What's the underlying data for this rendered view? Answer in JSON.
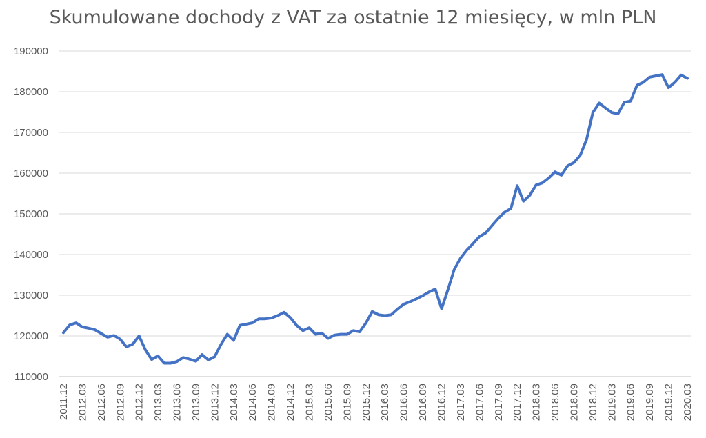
{
  "chart_data": {
    "type": "line",
    "title": "Skumulowane dochody z VAT za ostatnie 12 miesięcy, w mln PLN",
    "xlabel": "",
    "ylabel": "",
    "ylim": [
      110000,
      190000
    ],
    "yticks": [
      "190000",
      "180000",
      "170000",
      "160000",
      "150000",
      "140000",
      "130000",
      "120000",
      "110000"
    ],
    "grid": true,
    "legend": "none",
    "line_color": "#4472c4",
    "x_tick_labels": [
      "2011.12",
      "2012.03",
      "2012.06",
      "2012.09",
      "2012.12",
      "2013.03",
      "2013.06",
      "2013.09",
      "2013.12",
      "2014.03",
      "2014.06",
      "2014.09",
      "2014.12",
      "2015.03",
      "2015.06",
      "2015.09",
      "2015.12",
      "2016.03",
      "2016.06",
      "2016.09",
      "2016.12",
      "2017.03",
      "2017.06",
      "2017.09",
      "2017.12",
      "2018.03",
      "2018.06",
      "2018.09",
      "2018.12",
      "2019.03",
      "2019.06",
      "2019.09",
      "2019.12",
      "2020.03"
    ],
    "series": [
      {
        "name": "",
        "values": [
          120800,
          122700,
          123200,
          122200,
          121900,
          121500,
          120600,
          119700,
          120100,
          119200,
          117300,
          118000,
          120000,
          116600,
          114200,
          115100,
          113300,
          113300,
          113700,
          114700,
          114300,
          113800,
          115400,
          114100,
          114900,
          117900,
          120400,
          118900,
          122600,
          122900,
          123200,
          124200,
          124200,
          124400,
          125000,
          125800,
          124500,
          122600,
          121300,
          122000,
          120400,
          120700,
          119400,
          120200,
          120400,
          120400,
          121300,
          121000,
          123200,
          126000,
          125200,
          125000,
          125200,
          126600,
          127800,
          128400,
          129100,
          129900,
          130800,
          131500,
          126700,
          131300,
          136300,
          139100,
          141100,
          142700,
          144400,
          145300,
          147100,
          148900,
          150400,
          151300,
          156900,
          153100,
          154600,
          157100,
          157600,
          158800,
          160300,
          159500,
          161800,
          162600,
          164400,
          168200,
          174900,
          177200,
          176000,
          174900,
          174600,
          177400,
          177700,
          181600,
          182300,
          183600,
          183900,
          184200,
          181000,
          182300,
          184100,
          183300
        ]
      }
    ]
  }
}
